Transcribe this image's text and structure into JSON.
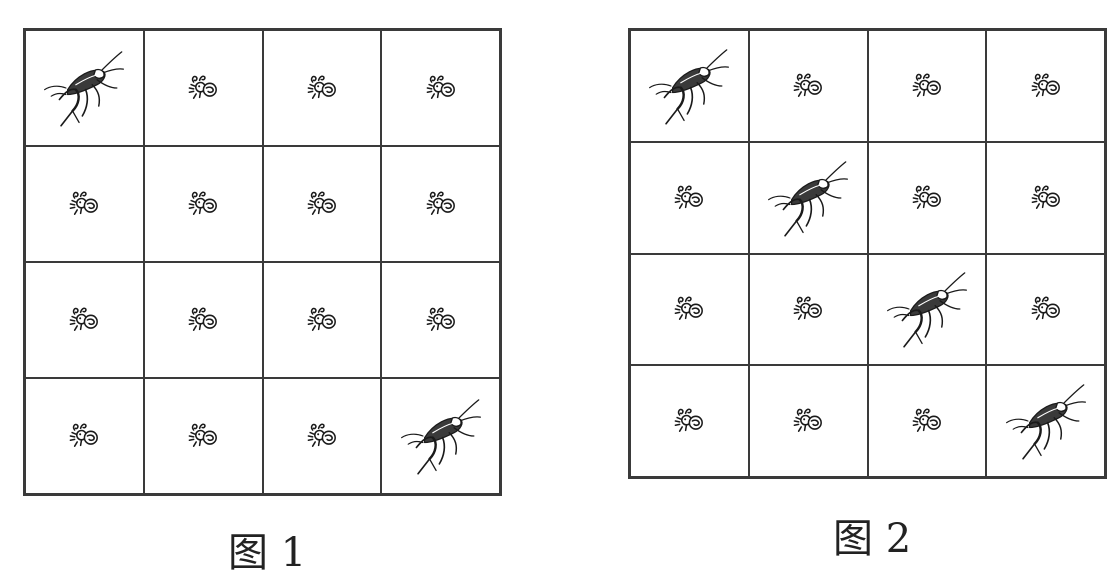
{
  "figures": [
    {
      "caption": "图 1",
      "rows": 4,
      "cols": 4,
      "cells": [
        [
          "cricket",
          "ant",
          "ant",
          "ant"
        ],
        [
          "ant",
          "ant",
          "ant",
          "ant"
        ],
        [
          "ant",
          "ant",
          "ant",
          "ant"
        ],
        [
          "ant",
          "ant",
          "ant",
          "cricket"
        ]
      ]
    },
    {
      "caption": "图 2",
      "rows": 4,
      "cols": 4,
      "cells": [
        [
          "cricket",
          "ant",
          "ant",
          "ant"
        ],
        [
          "ant",
          "cricket",
          "ant",
          "ant"
        ],
        [
          "ant",
          "ant",
          "cricket",
          "ant"
        ],
        [
          "ant",
          "ant",
          "ant",
          "cricket"
        ]
      ]
    }
  ],
  "colors": {
    "line": "#3a3a3a",
    "ink": "#1a1a1a"
  }
}
